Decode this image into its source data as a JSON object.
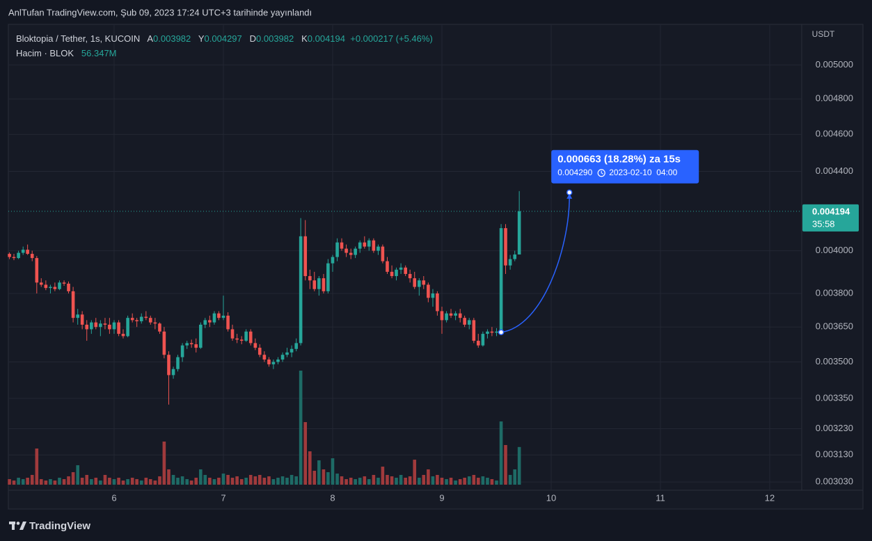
{
  "header": "AnlTufan TradingView.com, Şub 09, 2023 17:24 UTC+3 tarihinde yayınlandı",
  "logo": "TradingView",
  "chart_data": {
    "type": "candlestick",
    "title": "Bloktopia / Tether, 1s, KUCOIN",
    "ohlc_legend": {
      "open_label": "A",
      "open": 0.003982,
      "high_label": "Y",
      "high": 0.004297,
      "low_label": "D",
      "low": 0.003982,
      "close_label": "K",
      "close": 0.004194,
      "change": "+0.000217 (+5.46%)"
    },
    "volume_legend": {
      "label": "Hacim · BLOK",
      "value": "56.347M"
    },
    "currency": "USDT",
    "log": true,
    "grid": true,
    "up_color": "#26a69a",
    "down_color": "#ef5350",
    "up_volume_color": "#1e6b66",
    "down_volume_color": "#a03a3c",
    "xlim": [
      5.032,
      12.293
    ],
    "xticks": [
      6,
      7,
      8,
      9,
      10,
      11,
      12
    ],
    "ylim": [
      0.003,
      0.00525
    ],
    "yticks": [
      {
        "value": 0.00303,
        "label": "0.003030"
      },
      {
        "value": 0.00313,
        "label": "0.003130"
      },
      {
        "value": 0.00323,
        "label": "0.003230"
      },
      {
        "value": 0.00335,
        "label": "0.003350"
      },
      {
        "value": 0.0035,
        "label": "0.003500"
      },
      {
        "value": 0.00365,
        "label": "0.003650"
      },
      {
        "value": 0.0038,
        "label": "0.003800"
      },
      {
        "value": 0.004,
        "label": "0.004000"
      },
      {
        "value": 0.0044,
        "label": "0.004400"
      },
      {
        "value": 0.0046,
        "label": "0.004600"
      },
      {
        "value": 0.0048,
        "label": "0.004800"
      },
      {
        "value": 0.005,
        "label": "0.005000"
      }
    ],
    "last_price": {
      "value": 0.004194,
      "label": "0.004194",
      "countdown": "35:58"
    },
    "measure": {
      "label": "0.000663 (18.28%) za 15s",
      "price": "0.004290",
      "date": "2023-02-10  04:00",
      "from": [
        9.542,
        0.003627
      ],
      "to": [
        10.167,
        0.00429
      ]
    },
    "x": [
      5.042,
      5.083,
      5.125,
      5.167,
      5.208,
      5.25,
      5.292,
      5.333,
      5.375,
      5.417,
      5.458,
      5.5,
      5.542,
      5.583,
      5.625,
      5.667,
      5.708,
      5.75,
      5.792,
      5.833,
      5.875,
      5.917,
      5.958,
      6,
      6.042,
      6.083,
      6.125,
      6.167,
      6.208,
      6.25,
      6.292,
      6.333,
      6.375,
      6.417,
      6.458,
      6.5,
      6.542,
      6.583,
      6.625,
      6.667,
      6.708,
      6.75,
      6.792,
      6.833,
      6.875,
      6.917,
      6.958,
      7,
      7.042,
      7.083,
      7.125,
      7.167,
      7.208,
      7.25,
      7.292,
      7.333,
      7.375,
      7.417,
      7.458,
      7.5,
      7.542,
      7.583,
      7.625,
      7.667,
      7.708,
      7.75,
      7.792,
      7.833,
      7.875,
      7.917,
      7.958,
      8,
      8.042,
      8.083,
      8.125,
      8.167,
      8.208,
      8.25,
      8.292,
      8.333,
      8.375,
      8.417,
      8.458,
      8.5,
      8.542,
      8.583,
      8.625,
      8.667,
      8.708,
      8.75,
      8.792,
      8.833,
      8.875,
      8.917,
      8.958,
      9,
      9.042,
      9.083,
      9.125,
      9.167,
      9.208,
      9.25,
      9.292,
      9.333,
      9.375,
      9.417,
      9.458,
      9.5,
      9.542,
      9.583,
      9.625,
      9.667,
      9.708
    ],
    "open": [
      0.003985,
      0.00397,
      0.003965,
      0.00399,
      0.004005,
      0.003985,
      0.003965,
      0.00385,
      0.00384,
      0.003825,
      0.00383,
      0.00382,
      0.00385,
      0.003845,
      0.00381,
      0.00369,
      0.003705,
      0.00366,
      0.00364,
      0.00367,
      0.00365,
      0.003665,
      0.00366,
      0.00364,
      0.00367,
      0.00362,
      0.00361,
      0.00369,
      0.00368,
      0.003675,
      0.003695,
      0.00369,
      0.00367,
      0.003665,
      0.00363,
      0.00353,
      0.003445,
      0.00347,
      0.00352,
      0.00357,
      0.00358,
      0.003575,
      0.00356,
      0.00366,
      0.00368,
      0.00367,
      0.00371,
      0.00369,
      0.0037,
      0.00364,
      0.0036,
      0.003595,
      0.00359,
      0.00363,
      0.00358,
      0.00356,
      0.00353,
      0.00351,
      0.00349,
      0.0035,
      0.00351,
      0.00353,
      0.00354,
      0.003555,
      0.00358,
      0.00407,
      0.00388,
      0.00386,
      0.00382,
      0.00387,
      0.00381,
      0.00394,
      0.00397,
      0.00404,
      0.00401,
      0.00399,
      0.00398,
      0.00401,
      0.00404,
      0.00402,
      0.00405,
      0.004,
      0.00402,
      0.00395,
      0.0039,
      0.00388,
      0.00391,
      0.00392,
      0.00389,
      0.00387,
      0.00383,
      0.00386,
      0.00384,
      0.00378,
      0.0038,
      0.00372,
      0.00368,
      0.00371,
      0.0037,
      0.00371,
      0.00369,
      0.00366,
      0.00368,
      0.00359,
      0.00357,
      0.00362,
      0.00363,
      0.003625,
      0.00363,
      0.00411,
      0.00393,
      0.00396,
      0.003982
    ],
    "high": [
      0.003992,
      0.003985,
      0.004,
      0.00402,
      0.00403,
      0.004,
      0.003975,
      0.00387,
      0.00386,
      0.00384,
      0.00385,
      0.00386,
      0.00386,
      0.003855,
      0.00383,
      0.00373,
      0.00372,
      0.00368,
      0.00368,
      0.00369,
      0.00368,
      0.00369,
      0.00369,
      0.00368,
      0.00368,
      0.00364,
      0.0037,
      0.00371,
      0.00369,
      0.00371,
      0.00372,
      0.0037,
      0.00369,
      0.00367,
      0.00365,
      0.003545,
      0.00348,
      0.00353,
      0.00358,
      0.00359,
      0.003595,
      0.0036,
      0.00367,
      0.00369,
      0.0037,
      0.00372,
      0.00372,
      0.00379,
      0.003715,
      0.00366,
      0.00362,
      0.00361,
      0.00364,
      0.00364,
      0.0036,
      0.003575,
      0.003545,
      0.00352,
      0.00351,
      0.00352,
      0.00354,
      0.00356,
      0.00357,
      0.0036,
      0.00416,
      0.00415,
      0.00391,
      0.0039,
      0.00388,
      0.00389,
      0.00396,
      0.00398,
      0.00406,
      0.00406,
      0.00403,
      0.00401,
      0.00402,
      0.00405,
      0.00407,
      0.00406,
      0.00406,
      0.00403,
      0.00403,
      0.00397,
      0.00393,
      0.00392,
      0.00394,
      0.00393,
      0.00391,
      0.0039,
      0.00387,
      0.00388,
      0.00385,
      0.00382,
      0.00381,
      0.00374,
      0.00372,
      0.00373,
      0.00372,
      0.00373,
      0.0037,
      0.00369,
      0.00369,
      0.00362,
      0.00363,
      0.00364,
      0.00365,
      0.003645,
      0.00413,
      0.00413,
      0.00398,
      0.004,
      0.004297
    ],
    "low": [
      0.00396,
      0.003955,
      0.00396,
      0.00398,
      0.00398,
      0.00395,
      0.0038,
      0.00383,
      0.003815,
      0.0038,
      0.00381,
      0.003815,
      0.003835,
      0.0038,
      0.00367,
      0.00366,
      0.00364,
      0.00359,
      0.00362,
      0.00364,
      0.00361,
      0.00364,
      0.00362,
      0.00362,
      0.00361,
      0.0036,
      0.003605,
      0.00367,
      0.00365,
      0.003665,
      0.00368,
      0.00366,
      0.00364,
      0.00362,
      0.003515,
      0.003325,
      0.00343,
      0.00346,
      0.0035,
      0.003555,
      0.00356,
      0.00354,
      0.003555,
      0.003645,
      0.00365,
      0.00366,
      0.00368,
      0.00368,
      0.00363,
      0.00359,
      0.00358,
      0.003575,
      0.003585,
      0.00357,
      0.00355,
      0.00352,
      0.0035,
      0.00348,
      0.00347,
      0.00349,
      0.0035,
      0.00352,
      0.00352,
      0.003545,
      0.00357,
      0.00386,
      0.00382,
      0.00381,
      0.00379,
      0.0038,
      0.0038,
      0.0039,
      0.00395,
      0.004,
      0.00397,
      0.00396,
      0.003965,
      0.00399,
      0.00401,
      0.004,
      0.00399,
      0.00398,
      0.00394,
      0.00389,
      0.00387,
      0.00386,
      0.00389,
      0.00388,
      0.00385,
      0.00382,
      0.00379,
      0.00382,
      0.00376,
      0.00374,
      0.0037,
      0.00362,
      0.00367,
      0.00369,
      0.00368,
      0.00367,
      0.00365,
      0.00364,
      0.00358,
      0.00356,
      0.003565,
      0.0036,
      0.00361,
      0.00361,
      0.00362,
      0.00389,
      0.00391,
      0.00395,
      0.003982
    ],
    "close": [
      0.00397,
      0.003965,
      0.00399,
      0.004005,
      0.003985,
      0.003965,
      0.00385,
      0.00384,
      0.003825,
      0.00383,
      0.00382,
      0.00385,
      0.003845,
      0.00381,
      0.00369,
      0.003705,
      0.00366,
      0.00364,
      0.00367,
      0.00365,
      0.003665,
      0.00366,
      0.00364,
      0.00367,
      0.00362,
      0.00361,
      0.00369,
      0.00368,
      0.003675,
      0.003695,
      0.00369,
      0.00367,
      0.003665,
      0.00363,
      0.00353,
      0.003445,
      0.00347,
      0.00352,
      0.00357,
      0.00358,
      0.003575,
      0.00356,
      0.00366,
      0.00368,
      0.00367,
      0.00371,
      0.00369,
      0.0037,
      0.00364,
      0.0036,
      0.003595,
      0.00359,
      0.00363,
      0.00358,
      0.00356,
      0.00353,
      0.00351,
      0.00349,
      0.0035,
      0.00351,
      0.00353,
      0.00354,
      0.003555,
      0.00358,
      0.00407,
      0.00388,
      0.00386,
      0.00382,
      0.00387,
      0.00381,
      0.00394,
      0.00397,
      0.00404,
      0.00401,
      0.00399,
      0.00398,
      0.00401,
      0.00404,
      0.00402,
      0.00405,
      0.004,
      0.00402,
      0.00395,
      0.0039,
      0.00388,
      0.00391,
      0.00392,
      0.00389,
      0.00387,
      0.00383,
      0.00386,
      0.00384,
      0.00378,
      0.0038,
      0.00372,
      0.00368,
      0.00371,
      0.0037,
      0.00371,
      0.00369,
      0.00366,
      0.00368,
      0.00359,
      0.00357,
      0.00362,
      0.00363,
      0.003625,
      0.00363,
      0.00411,
      0.00393,
      0.00396,
      0.003982,
      0.004194
    ],
    "volume": [
      8.3,
      6.2,
      10.4,
      8.3,
      10.4,
      14.6,
      54.1,
      8.3,
      6.2,
      8.3,
      6.2,
      10.4,
      8.3,
      12.5,
      18.7,
      29.1,
      10.4,
      14.6,
      8.3,
      10.4,
      6.2,
      14.6,
      10.4,
      8.3,
      10.4,
      6.2,
      8.3,
      10.4,
      8.3,
      6.2,
      10.4,
      8.3,
      6.2,
      12.5,
      64.5,
      22.9,
      14.6,
      10.4,
      12.5,
      8.3,
      6.2,
      10.4,
      22.9,
      14.6,
      10.4,
      8.3,
      10.4,
      16.6,
      14.6,
      10.4,
      12.5,
      8.3,
      10.4,
      14.6,
      12.5,
      14.6,
      10.4,
      12.5,
      8.3,
      10.4,
      12.5,
      10.4,
      14.6,
      12.5,
      170.6,
      93.6,
      49.9,
      20.8,
      36.4,
      22.9,
      18.7,
      39.5,
      16.6,
      12.5,
      8.3,
      10.4,
      8.3,
      10.4,
      12.5,
      8.3,
      14.6,
      10.4,
      27,
      14.6,
      12.5,
      10.4,
      14.6,
      10.4,
      12.5,
      37.4,
      10.4,
      14.6,
      22.9,
      12.5,
      14.6,
      10.4,
      8.3,
      10.4,
      6.2,
      8.3,
      10.4,
      12.5,
      14.6,
      10.4,
      12.5,
      10.4,
      8.3,
      6.2,
      94.6,
      59.3,
      14.6,
      22.9,
      56.347
    ]
  }
}
